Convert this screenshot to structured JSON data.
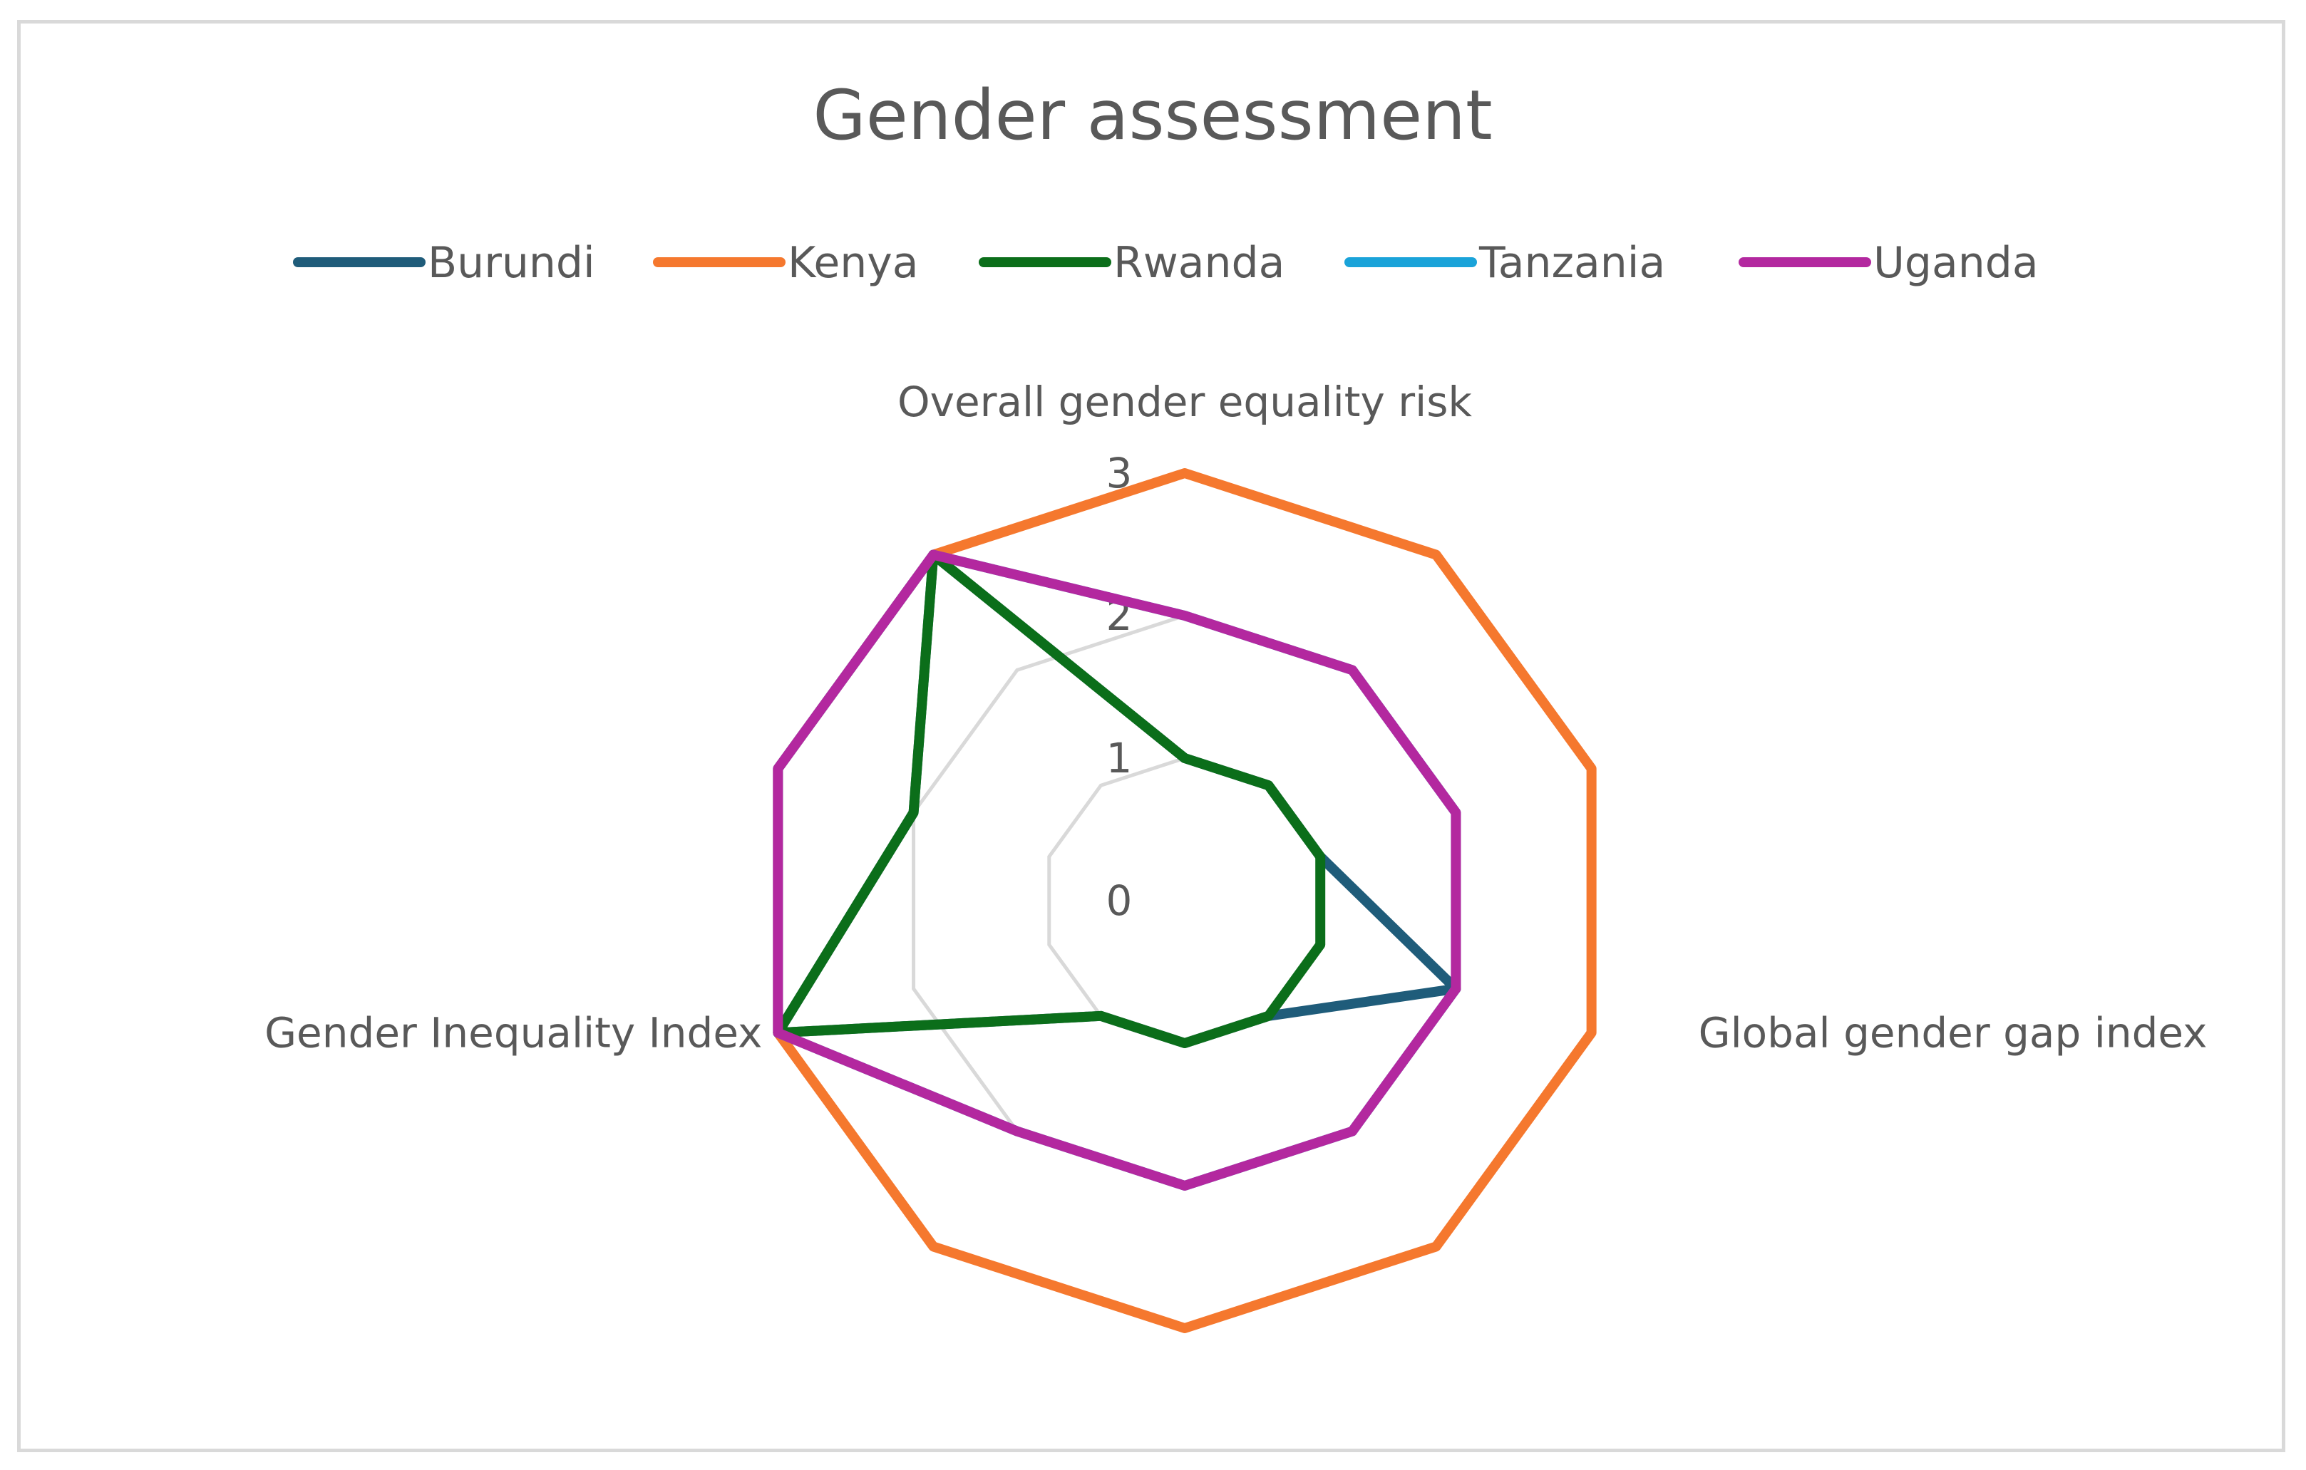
{
  "chart_data": {
    "type": "radar",
    "title": "Gender assessment",
    "axes": [
      "Overall gender equality risk",
      "",
      "",
      "Global gender gap index",
      "",
      "",
      "",
      "Gender Inequality Index",
      "",
      ""
    ],
    "axis_count": 10,
    "rlim": [
      0,
      3
    ],
    "ticks": [
      "0",
      "1",
      "2",
      "3"
    ],
    "grid": true,
    "legend_position": "top",
    "series": [
      {
        "name": "Burundi",
        "color": "#1f5c7a",
        "values": [
          1,
          1,
          1,
          2,
          1,
          1,
          1,
          3,
          2,
          3
        ]
      },
      {
        "name": "Kenya",
        "color": "#f5782e",
        "values": [
          3,
          3,
          3,
          3,
          3,
          3,
          3,
          3,
          3,
          3
        ]
      },
      {
        "name": "Rwanda",
        "color": "#0b6e1a",
        "values": [
          1,
          1,
          1,
          1,
          1,
          1,
          1,
          3,
          2,
          3
        ]
      },
      {
        "name": "Tanzania",
        "color": "#1aa3d9",
        "values": [
          2,
          2,
          2,
          2,
          2,
          2,
          2,
          3,
          3,
          3
        ]
      },
      {
        "name": "Uganda",
        "color": "#b3289f",
        "values": [
          2,
          2,
          2,
          2,
          2,
          2,
          2,
          3,
          3,
          3
        ]
      }
    ],
    "gridline_color": "#d9d9d9"
  }
}
